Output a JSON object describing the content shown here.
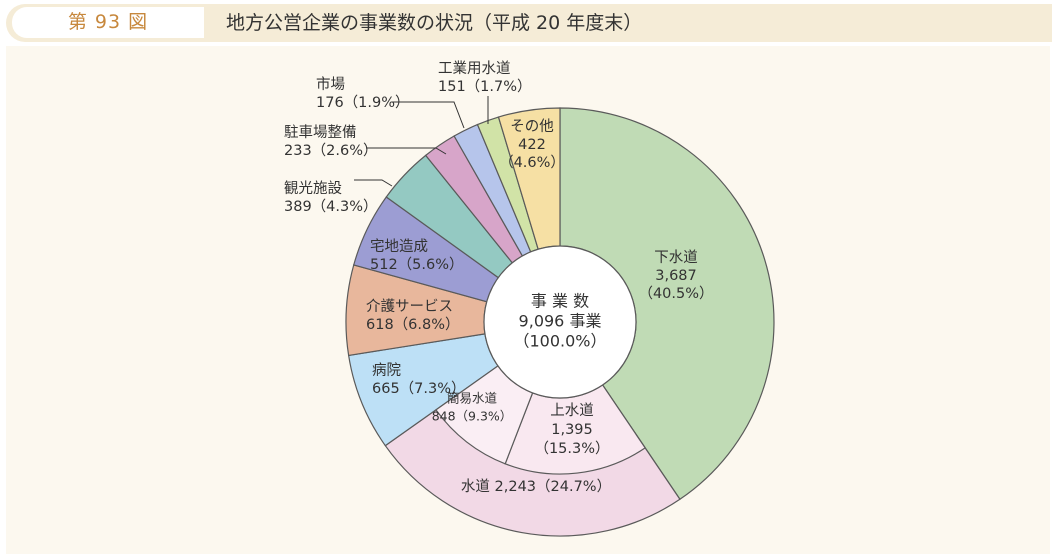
{
  "figure": {
    "number": "第 93 図",
    "title": "地方公営企業の事業数の状況（平成 20 年度末）"
  },
  "chart_data": {
    "type": "pie",
    "center": {
      "lines": [
        "事 業 数",
        "9,096 事業",
        "（100.0%）"
      ]
    },
    "outer": [
      {
        "name": "下水道",
        "value": 3687,
        "percent": 40.5,
        "color": "#c0dbb5",
        "lines": [
          "下水道",
          "3,687",
          "（40.5%）"
        ]
      },
      {
        "name": "水道",
        "value": 2243,
        "percent": 24.7,
        "color": "#f2d9e6",
        "lines": [
          "水道 2,243（24.7%）"
        ]
      },
      {
        "name": "病院",
        "value": 665,
        "percent": 7.3,
        "color": "#bde0f6",
        "lines": [
          "病院",
          "665（7.3%）"
        ]
      },
      {
        "name": "介護サービス",
        "value": 618,
        "percent": 6.8,
        "color": "#e8b79c",
        "lines": [
          "介護サービス",
          "618（6.8%）"
        ]
      },
      {
        "name": "宅地造成",
        "value": 512,
        "percent": 5.6,
        "color": "#9c9dd3",
        "lines": [
          "宅地造成",
          "512（5.6%）"
        ]
      },
      {
        "name": "観光施設",
        "value": 389,
        "percent": 4.3,
        "color": "#94c9c2",
        "lines": [
          "観光施設",
          "389（4.3%）"
        ]
      },
      {
        "name": "駐車場整備",
        "value": 233,
        "percent": 2.6,
        "color": "#d7a5c9",
        "lines": [
          "駐車場整備",
          "233（2.6%）"
        ]
      },
      {
        "name": "市場",
        "value": 176,
        "percent": 1.9,
        "color": "#b6c5eb",
        "lines": [
          "市場",
          "176（1.9%）"
        ]
      },
      {
        "name": "工業用水道",
        "value": 151,
        "percent": 1.7,
        "color": "#d1e3a7",
        "lines": [
          "工業用水道",
          "151（1.7%）"
        ]
      },
      {
        "name": "その他",
        "value": 422,
        "percent": 4.6,
        "color": "#f6e0a4",
        "lines": [
          "その他",
          "422",
          "（4.6%）"
        ]
      }
    ],
    "inner": [
      {
        "name": "上水道",
        "value": 1395,
        "percent": 15.3,
        "color": "#f9e8f0",
        "lines": [
          "上水道",
          "1,395",
          "（15.3%）"
        ]
      },
      {
        "name": "簡易水道",
        "value": 848,
        "percent": 9.3,
        "color": "#faeef4",
        "lines": [
          "簡易水道",
          "848（9.3%）"
        ]
      }
    ]
  }
}
